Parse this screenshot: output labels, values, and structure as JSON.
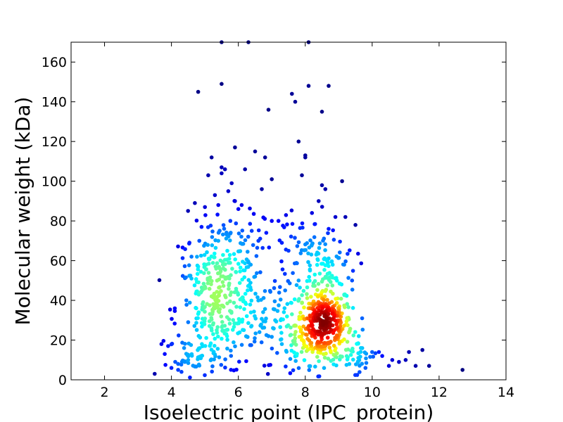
{
  "chart_data": {
    "type": "scatter",
    "xlabel": "Isoelectric point (IPC_protein)",
    "ylabel": "Molecular weight (kDa)",
    "xlim": [
      1,
      14
    ],
    "ylim": [
      0,
      170
    ],
    "xticks": [
      2,
      4,
      6,
      8,
      10,
      12,
      14
    ],
    "yticks": [
      0,
      20,
      40,
      60,
      80,
      100,
      120,
      140,
      160
    ],
    "grid": false,
    "color_encoding": "point density (jet colormap: blue = low, red = high)",
    "points": [
      [
        3.5,
        3
      ],
      [
        3.7,
        18
      ],
      [
        3.8,
        13
      ],
      [
        3.9,
        17
      ],
      [
        4.0,
        6
      ],
      [
        4.1,
        36
      ],
      [
        4.2,
        8
      ],
      [
        4.2,
        5
      ],
      [
        4.3,
        4
      ],
      [
        4.4,
        9
      ],
      [
        4.5,
        10
      ],
      [
        4.5,
        29
      ],
      [
        4.6,
        51
      ],
      [
        4.6,
        62
      ],
      [
        4.7,
        89
      ],
      [
        4.8,
        145
      ],
      [
        4.8,
        57
      ],
      [
        4.9,
        77
      ],
      [
        5.0,
        87
      ],
      [
        5.1,
        103
      ],
      [
        5.2,
        112
      ],
      [
        5.3,
        93
      ],
      [
        5.4,
        88
      ],
      [
        5.4,
        70
      ],
      [
        5.5,
        107
      ],
      [
        5.5,
        104
      ],
      [
        5.5,
        149
      ],
      [
        5.6,
        106
      ],
      [
        5.7,
        95
      ],
      [
        5.8,
        99
      ],
      [
        5.9,
        90
      ],
      [
        5.9,
        117
      ],
      [
        6.0,
        86
      ],
      [
        6.1,
        88
      ],
      [
        6.2,
        106
      ],
      [
        6.3,
        170
      ],
      [
        6.4,
        75
      ],
      [
        6.5,
        115
      ],
      [
        6.6,
        70
      ],
      [
        6.7,
        96
      ],
      [
        6.8,
        112
      ],
      [
        6.9,
        136
      ],
      [
        7.0,
        101
      ],
      [
        7.0,
        80
      ],
      [
        7.2,
        80
      ],
      [
        7.3,
        69
      ],
      [
        7.5,
        65
      ],
      [
        7.6,
        144
      ],
      [
        7.7,
        140
      ],
      [
        7.8,
        120
      ],
      [
        7.9,
        103
      ],
      [
        8.0,
        113
      ],
      [
        8.0,
        112
      ],
      [
        8.1,
        148
      ],
      [
        8.2,
        84
      ],
      [
        8.4,
        90
      ],
      [
        8.5,
        135
      ],
      [
        8.5,
        98
      ],
      [
        8.6,
        96
      ],
      [
        8.7,
        148
      ],
      [
        8.7,
        76
      ],
      [
        8.9,
        82
      ],
      [
        9.1,
        100
      ],
      [
        9.2,
        82
      ],
      [
        9.4,
        50
      ],
      [
        9.5,
        78
      ],
      [
        9.7,
        31
      ],
      [
        10.0,
        14
      ],
      [
        10.2,
        14
      ],
      [
        10.3,
        12
      ],
      [
        10.5,
        7
      ],
      [
        10.6,
        10
      ],
      [
        10.8,
        9
      ],
      [
        11.0,
        10
      ],
      [
        11.1,
        14
      ],
      [
        11.3,
        7
      ],
      [
        11.5,
        15
      ],
      [
        11.7,
        7
      ],
      [
        12.7,
        5
      ],
      [
        5.5,
        170
      ],
      [
        8.1,
        170
      ],
      [
        6.5,
        52
      ],
      [
        7.1,
        30
      ],
      [
        7.4,
        45
      ],
      [
        7.6,
        33
      ],
      [
        6.9,
        22
      ],
      [
        7.3,
        18
      ],
      [
        7.8,
        50
      ],
      [
        9.6,
        22
      ],
      [
        9.8,
        6
      ]
    ],
    "clusters": [
      {
        "cx": 8.55,
        "cy": 28,
        "sx": 0.42,
        "sy": 10,
        "n": 380
      },
      {
        "cx": 5.35,
        "cy": 34,
        "sx": 0.6,
        "sy": 16,
        "n": 280
      },
      {
        "cx": 8.6,
        "cy": 58,
        "sx": 0.45,
        "sy": 7,
        "n": 70
      },
      {
        "cx": 5.5,
        "cy": 62,
        "sx": 0.6,
        "sy": 12,
        "n": 110
      },
      {
        "cx": 8.0,
        "cy": 70,
        "sx": 0.6,
        "sy": 8,
        "n": 40
      },
      {
        "cx": 6.9,
        "cy": 30,
        "sx": 0.5,
        "sy": 14,
        "n": 60
      },
      {
        "cx": 7.5,
        "cy": 22,
        "sx": 0.4,
        "sy": 10,
        "n": 40
      },
      {
        "cx": 9.5,
        "cy": 12,
        "sx": 0.35,
        "sy": 4,
        "n": 40
      },
      {
        "cx": 4.6,
        "cy": 10,
        "sx": 0.35,
        "sy": 5,
        "n": 25
      }
    ]
  }
}
